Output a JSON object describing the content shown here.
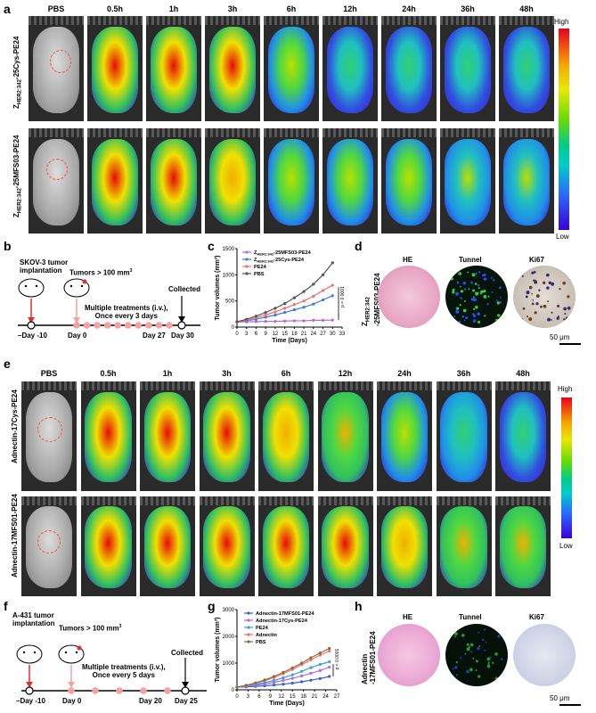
{
  "panels": {
    "a": "a",
    "b": "b",
    "c": "c",
    "d": "d",
    "e": "e",
    "f": "f",
    "g": "g",
    "h": "h"
  },
  "panel_a": {
    "time_labels": [
      "PBS",
      "0.5h",
      "1h",
      "3h",
      "6h",
      "12h",
      "24h",
      "36h",
      "48h"
    ],
    "row1_label": "Z",
    "row1_sub": "HER2:342",
    "row1_suffix": "-25Cys-PE24",
    "row2_label": "Z",
    "row2_sub": "HER2:342",
    "row2_suffix": "-25MFS03-PE24",
    "colorbar_high": "High",
    "colorbar_low": "Low",
    "row1_intensity": [
      0,
      0.85,
      0.9,
      0.75,
      0.45,
      0.3,
      0.2,
      0.15,
      0.1
    ],
    "row2_intensity": [
      0,
      0.85,
      0.8,
      0.65,
      0.5,
      0.45,
      0.42,
      0.4,
      0.38
    ]
  },
  "panel_b": {
    "tumor_implant": "SKOV-3 tumor",
    "tumor_implant2": "implantation",
    "tumors": "Tumors > 100 mm",
    "treatments": "Multiple treatments (i.v.),",
    "once": "Once every 3 days",
    "collected": "Collected",
    "day_neg10": "–Day -10",
    "day0": "Day 0",
    "day27": "Day 27",
    "day30": "Day 30"
  },
  "chart_data": [
    {
      "type": "line",
      "panel": "c",
      "ylabel": "Tumor volumes (mm³)",
      "xlabel": "Time (Days)",
      "x_ticks": [
        "0",
        "3",
        "6",
        "9",
        "12",
        "15",
        "18",
        "21",
        "24",
        "27",
        "30",
        "33"
      ],
      "y_ticks": [
        "0",
        "500",
        "1000",
        "1500"
      ],
      "xlim": [
        0,
        33
      ],
      "ylim": [
        0,
        1500
      ],
      "pvalue": "p = 0.0001",
      "series": [
        {
          "name": "Z",
          "name_sub": "HER2:342",
          "name_suffix": "-25MFS03-PE24",
          "color": "#b36bd6",
          "x": [
            0,
            3,
            6,
            9,
            12,
            15,
            18,
            21,
            24,
            27,
            30
          ],
          "y": [
            100,
            100,
            105,
            110,
            110,
            115,
            120,
            120,
            130,
            130,
            135
          ]
        },
        {
          "name": "Z",
          "name_sub": "HER2:342",
          "name_suffix": "-25Cys-PE24",
          "color": "#3a7bd5",
          "x": [
            0,
            3,
            6,
            9,
            12,
            15,
            18,
            21,
            24,
            27,
            30
          ],
          "y": [
            100,
            120,
            150,
            190,
            230,
            280,
            330,
            380,
            440,
            520,
            600
          ]
        },
        {
          "name": "PE24",
          "color": "#f07070",
          "x": [
            0,
            3,
            6,
            9,
            12,
            15,
            18,
            21,
            24,
            27,
            30
          ],
          "y": [
            100,
            130,
            180,
            230,
            290,
            360,
            430,
            500,
            590,
            700,
            800
          ]
        },
        {
          "name": "PBS",
          "color": "#555555",
          "x": [
            0,
            3,
            6,
            9,
            12,
            15,
            18,
            21,
            24,
            27,
            30
          ],
          "y": [
            100,
            150,
            210,
            280,
            360,
            450,
            560,
            680,
            820,
            1000,
            1230
          ]
        }
      ]
    },
    {
      "type": "line",
      "panel": "g",
      "ylabel": "Tumor volumes (mm³)",
      "xlabel": "Time (Days)",
      "x_ticks": [
        "0",
        "3",
        "6",
        "9",
        "12",
        "15",
        "18",
        "21",
        "24",
        "27"
      ],
      "y_ticks": [
        "0",
        "1000",
        "2000",
        "3000"
      ],
      "xlim": [
        0,
        27
      ],
      "ylim": [
        0,
        3000
      ],
      "pvalue": "p < 0.0001",
      "series": [
        {
          "name": "Adnectin-17MFS01-PE24",
          "color": "#3a5fd5",
          "x": [
            0,
            2.5,
            5,
            7.5,
            10,
            12.5,
            15,
            17.5,
            20,
            22.5,
            25
          ],
          "y": [
            100,
            110,
            130,
            150,
            180,
            210,
            250,
            300,
            360,
            420,
            500
          ]
        },
        {
          "name": "Adnectin-17Cys-PE24",
          "color": "#b36bd6",
          "x": [
            0,
            2.5,
            5,
            7.5,
            10,
            12.5,
            15,
            17.5,
            20,
            22.5,
            25
          ],
          "y": [
            100,
            130,
            170,
            220,
            280,
            350,
            430,
            520,
            620,
            720,
            850
          ]
        },
        {
          "name": "PE24",
          "color": "#3aa0e0",
          "x": [
            0,
            2.5,
            5,
            7.5,
            10,
            12.5,
            15,
            17.5,
            20,
            22.5,
            25
          ],
          "y": [
            100,
            140,
            200,
            270,
            350,
            450,
            560,
            690,
            830,
            950,
            1050
          ]
        },
        {
          "name": "Adnectin",
          "color": "#f07070",
          "x": [
            0,
            2.5,
            5,
            7.5,
            10,
            12.5,
            15,
            17.5,
            20,
            22.5,
            25
          ],
          "y": [
            100,
            160,
            240,
            340,
            460,
            600,
            760,
            940,
            1120,
            1300,
            1450
          ]
        },
        {
          "name": "PBS",
          "color": "#8a6a3a",
          "x": [
            0,
            2.5,
            5,
            7.5,
            10,
            12.5,
            15,
            17.5,
            20,
            22.5,
            25
          ],
          "y": [
            100,
            170,
            260,
            370,
            500,
            650,
            820,
            1000,
            1200,
            1380,
            1550
          ]
        }
      ]
    }
  ],
  "panel_d": {
    "labels": [
      "HE",
      "Tunnel",
      "Ki67"
    ],
    "row_label_1": "Z",
    "row_label_sub": "HER2:342",
    "row_label_2": "-25MFS03-PE24",
    "scale": "50 μm"
  },
  "panel_e": {
    "time_labels": [
      "PBS",
      "0.5h",
      "1h",
      "3h",
      "6h",
      "12h",
      "24h",
      "36h",
      "48h"
    ],
    "row1_label": "Adnectin-17Cys-PE24",
    "row2_label": "Adnectin-17MFS01-PE24",
    "colorbar_high": "High",
    "colorbar_low": "Low",
    "row1_intensity": [
      0,
      0.9,
      0.9,
      0.85,
      0.7,
      0.55,
      0.45,
      0.35,
      0.25
    ],
    "row2_intensity": [
      0,
      0.9,
      0.85,
      0.8,
      0.78,
      0.72,
      0.65,
      0.6,
      0.55
    ]
  },
  "panel_f": {
    "tumor_implant": "A-431 tumor",
    "tumor_implant2": "implantation",
    "tumors": "Tumors > 100 mm",
    "treatments": "Multiple treatments (i.v.),",
    "once": "Once every 5 days",
    "collected": "Collected",
    "day_neg10": "–Day -10",
    "day0": "Day 0",
    "day20": "Day 20",
    "day25": "Day 25"
  },
  "panel_h": {
    "labels": [
      "HE",
      "Tunnel",
      "Ki67"
    ],
    "row_label_1": "Adnectin",
    "row_label_2": "-17MFS01-PE24",
    "scale": "50 μm"
  }
}
